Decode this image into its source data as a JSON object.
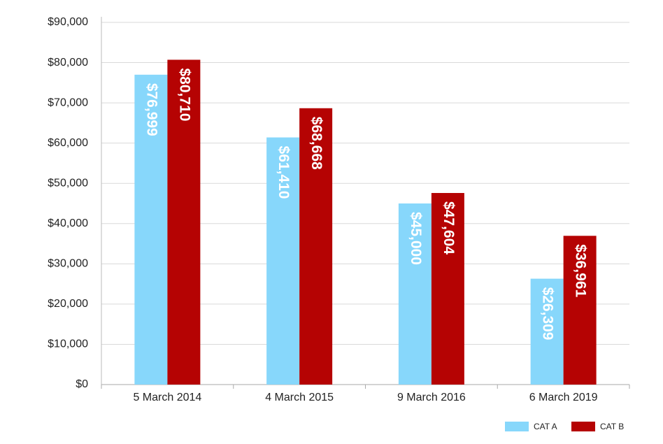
{
  "chart_data": {
    "type": "bar",
    "categories": [
      "5 March 2014",
      "4 March 2015",
      "9 March 2016",
      "6 March 2019"
    ],
    "series": [
      {
        "name": "CAT A",
        "color": "#87d7fb",
        "values": [
          76999,
          61410,
          45000,
          26309
        ],
        "value_labels": [
          "$76,999",
          "$61,410",
          "$45,000",
          "$26,309"
        ]
      },
      {
        "name": "CAT B",
        "color": "#b50303",
        "values": [
          80710,
          68668,
          47604,
          36961
        ],
        "value_labels": [
          "$80,710",
          "$68,668",
          "$47,604",
          "$36,961"
        ]
      }
    ],
    "ylim": [
      0,
      90000
    ],
    "yticks": [
      {
        "value": 0,
        "label": "$0"
      },
      {
        "value": 10000,
        "label": "$10,000"
      },
      {
        "value": 20000,
        "label": "$20,000"
      },
      {
        "value": 30000,
        "label": "$30,000"
      },
      {
        "value": 40000,
        "label": "$40,000"
      },
      {
        "value": 50000,
        "label": "$50,000"
      },
      {
        "value": 60000,
        "label": "$60,000"
      },
      {
        "value": 70000,
        "label": "$70,000"
      },
      {
        "value": 80000,
        "label": "$80,000"
      },
      {
        "value": 90000,
        "label": "$90,000"
      }
    ],
    "grid": true,
    "legend": "bottom-right"
  }
}
